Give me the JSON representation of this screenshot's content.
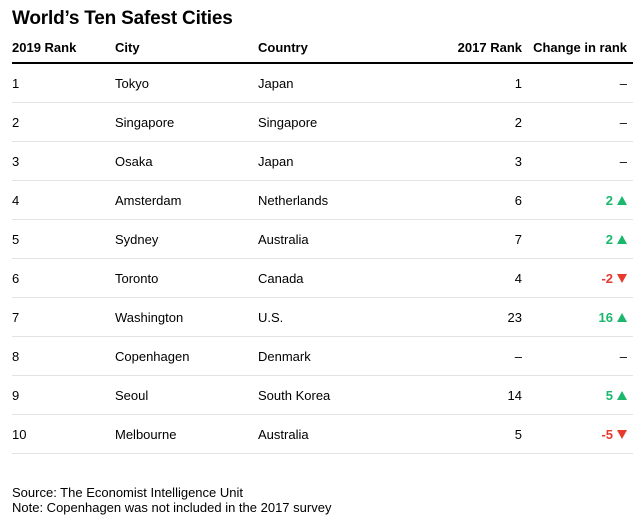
{
  "title": "World’s Ten Safest Cities",
  "columns": [
    "2019 Rank",
    "City",
    "Country",
    "2017 Rank",
    "Change in rank"
  ],
  "chart_data": {
    "type": "table",
    "title": "World’s Ten Safest Cities",
    "columns": [
      "2019 Rank",
      "City",
      "Country",
      "2017 Rank",
      "Change in rank"
    ],
    "rows": [
      {
        "rank2019": "1",
        "city": "Tokyo",
        "country": "Japan",
        "rank2017": "1",
        "change": "–",
        "direction": "none"
      },
      {
        "rank2019": "2",
        "city": "Singapore",
        "country": "Singapore",
        "rank2017": "2",
        "change": "–",
        "direction": "none"
      },
      {
        "rank2019": "3",
        "city": "Osaka",
        "country": "Japan",
        "rank2017": "3",
        "change": "–",
        "direction": "none"
      },
      {
        "rank2019": "4",
        "city": "Amsterdam",
        "country": "Netherlands",
        "rank2017": "6",
        "change": "2",
        "direction": "up"
      },
      {
        "rank2019": "5",
        "city": "Sydney",
        "country": "Australia",
        "rank2017": "7",
        "change": "2",
        "direction": "up"
      },
      {
        "rank2019": "6",
        "city": "Toronto",
        "country": "Canada",
        "rank2017": "4",
        "change": "-2",
        "direction": "down"
      },
      {
        "rank2019": "7",
        "city": "Washington",
        "country": "U.S.",
        "rank2017": "23",
        "change": "16",
        "direction": "up"
      },
      {
        "rank2019": "8",
        "city": "Copenhagen",
        "country": "Denmark",
        "rank2017": "–",
        "change": "–",
        "direction": "none"
      },
      {
        "rank2019": "9",
        "city": "Seoul",
        "country": "South Korea",
        "rank2017": "14",
        "change": "5",
        "direction": "up"
      },
      {
        "rank2019": "10",
        "city": "Melbourne",
        "country": "Australia",
        "rank2017": "5",
        "change": "-5",
        "direction": "down"
      }
    ],
    "colors": {
      "up": "#1ab76d",
      "down": "#e8392d"
    }
  },
  "footer": {
    "source": "Source: The Economist Intelligence Unit",
    "note": "Note: Copenhagen was not included in the 2017 survey"
  }
}
